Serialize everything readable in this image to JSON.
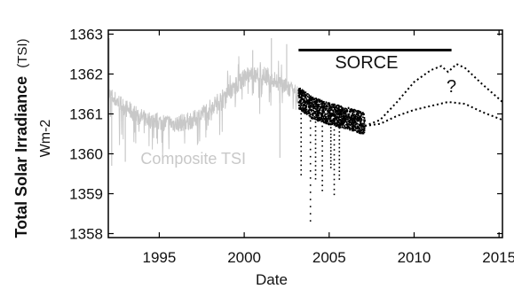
{
  "chart_data": {
    "type": "scatter",
    "title": "",
    "xlabel": "Date",
    "ylabel_bold": "Total Solar Irradiance",
    "ylabel_suffix": "(TSI)",
    "ylabel_units": "Wm-2",
    "xlim": [
      1992.0,
      2015.2
    ],
    "ylim": [
      1357.9,
      1363.1
    ],
    "x_ticks": [
      1995,
      2000,
      2005,
      2010,
      2015
    ],
    "x_tick_labels": [
      "1995",
      "2000",
      "2005",
      "2010",
      "2015"
    ],
    "y_ticks": [
      1358,
      1359,
      1360,
      1361,
      1362,
      1363
    ],
    "y_tick_labels": [
      "1358",
      "1359",
      "1360",
      "1361",
      "1362",
      "1363"
    ],
    "grid": false,
    "legend": "none",
    "colors": {
      "composite": "#c8c8c8",
      "sorce": "#000000",
      "projection": "#000000",
      "axis": "#000000"
    },
    "series": [
      {
        "name": "Composite TSI",
        "style": "thin line with daily dips",
        "x_range": [
          1992.0,
          2003.2
        ],
        "baseline": [
          [
            1992.0,
            1361.5
          ],
          [
            1993.0,
            1361.15
          ],
          [
            1994.0,
            1360.9
          ],
          [
            1995.0,
            1360.8
          ],
          [
            1996.0,
            1360.75
          ],
          [
            1997.0,
            1360.85
          ],
          [
            1998.0,
            1361.15
          ],
          [
            1999.0,
            1361.5
          ],
          [
            2000.0,
            1361.9
          ],
          [
            2001.0,
            1362.0
          ],
          [
            2002.0,
            1361.8
          ],
          [
            2003.2,
            1361.45
          ]
        ],
        "notable_points": [
          [
            1992.05,
            1362.9
          ],
          [
            1992.2,
            1359.7
          ],
          [
            1993.0,
            1359.8
          ],
          [
            2000.5,
            1362.6
          ],
          [
            2001.6,
            1362.9
          ],
          [
            2002.1,
            1359.9
          ],
          [
            2002.5,
            1362.75
          ]
        ]
      },
      {
        "name": "SORCE",
        "style": "dense points",
        "x_range": [
          2003.2,
          2007.1
        ],
        "baseline": [
          [
            2003.2,
            1361.4
          ],
          [
            2004.0,
            1361.15
          ],
          [
            2005.0,
            1361.0
          ],
          [
            2006.0,
            1360.9
          ],
          [
            2007.1,
            1360.75
          ]
        ],
        "notable_points": [
          [
            2003.35,
            1359.4
          ],
          [
            2003.9,
            1358.2
          ],
          [
            2004.2,
            1359.3
          ],
          [
            2004.6,
            1359.0
          ],
          [
            2005.1,
            1359.6
          ],
          [
            2005.3,
            1358.9
          ],
          [
            2005.6,
            1359.3
          ]
        ]
      },
      {
        "name": "Projection (upper)",
        "style": "dotted",
        "points": [
          [
            2007.1,
            1360.7
          ],
          [
            2008.0,
            1360.85
          ],
          [
            2009.0,
            1361.3
          ],
          [
            2010.0,
            1361.8
          ],
          [
            2011.0,
            1362.1
          ],
          [
            2011.6,
            1362.2
          ],
          [
            2012.0,
            1362.05
          ],
          [
            2012.5,
            1362.25
          ],
          [
            2013.0,
            1362.15
          ],
          [
            2014.0,
            1361.75
          ],
          [
            2015.2,
            1361.3
          ]
        ]
      },
      {
        "name": "Projection (lower)",
        "style": "dotted",
        "points": [
          [
            2007.1,
            1360.7
          ],
          [
            2008.0,
            1360.75
          ],
          [
            2009.0,
            1360.95
          ],
          [
            2010.0,
            1361.1
          ],
          [
            2011.0,
            1361.2
          ],
          [
            2012.0,
            1361.3
          ],
          [
            2013.0,
            1361.25
          ],
          [
            2014.0,
            1361.05
          ],
          [
            2015.2,
            1360.85
          ]
        ]
      }
    ],
    "annotations": [
      {
        "name": "sorce-bar",
        "text": "",
        "x_start": 2003.2,
        "x_end": 2012.2,
        "y": 1362.6
      },
      {
        "name": "sorce-label",
        "text": "SORCE",
        "x": 2007.2,
        "y": 1362.15
      },
      {
        "name": "question-mark",
        "text": "?",
        "x": 2012.2,
        "y": 1361.55
      },
      {
        "name": "composite-label",
        "text": "Composite TSI",
        "x": 1997.0,
        "y": 1359.75
      }
    ]
  }
}
